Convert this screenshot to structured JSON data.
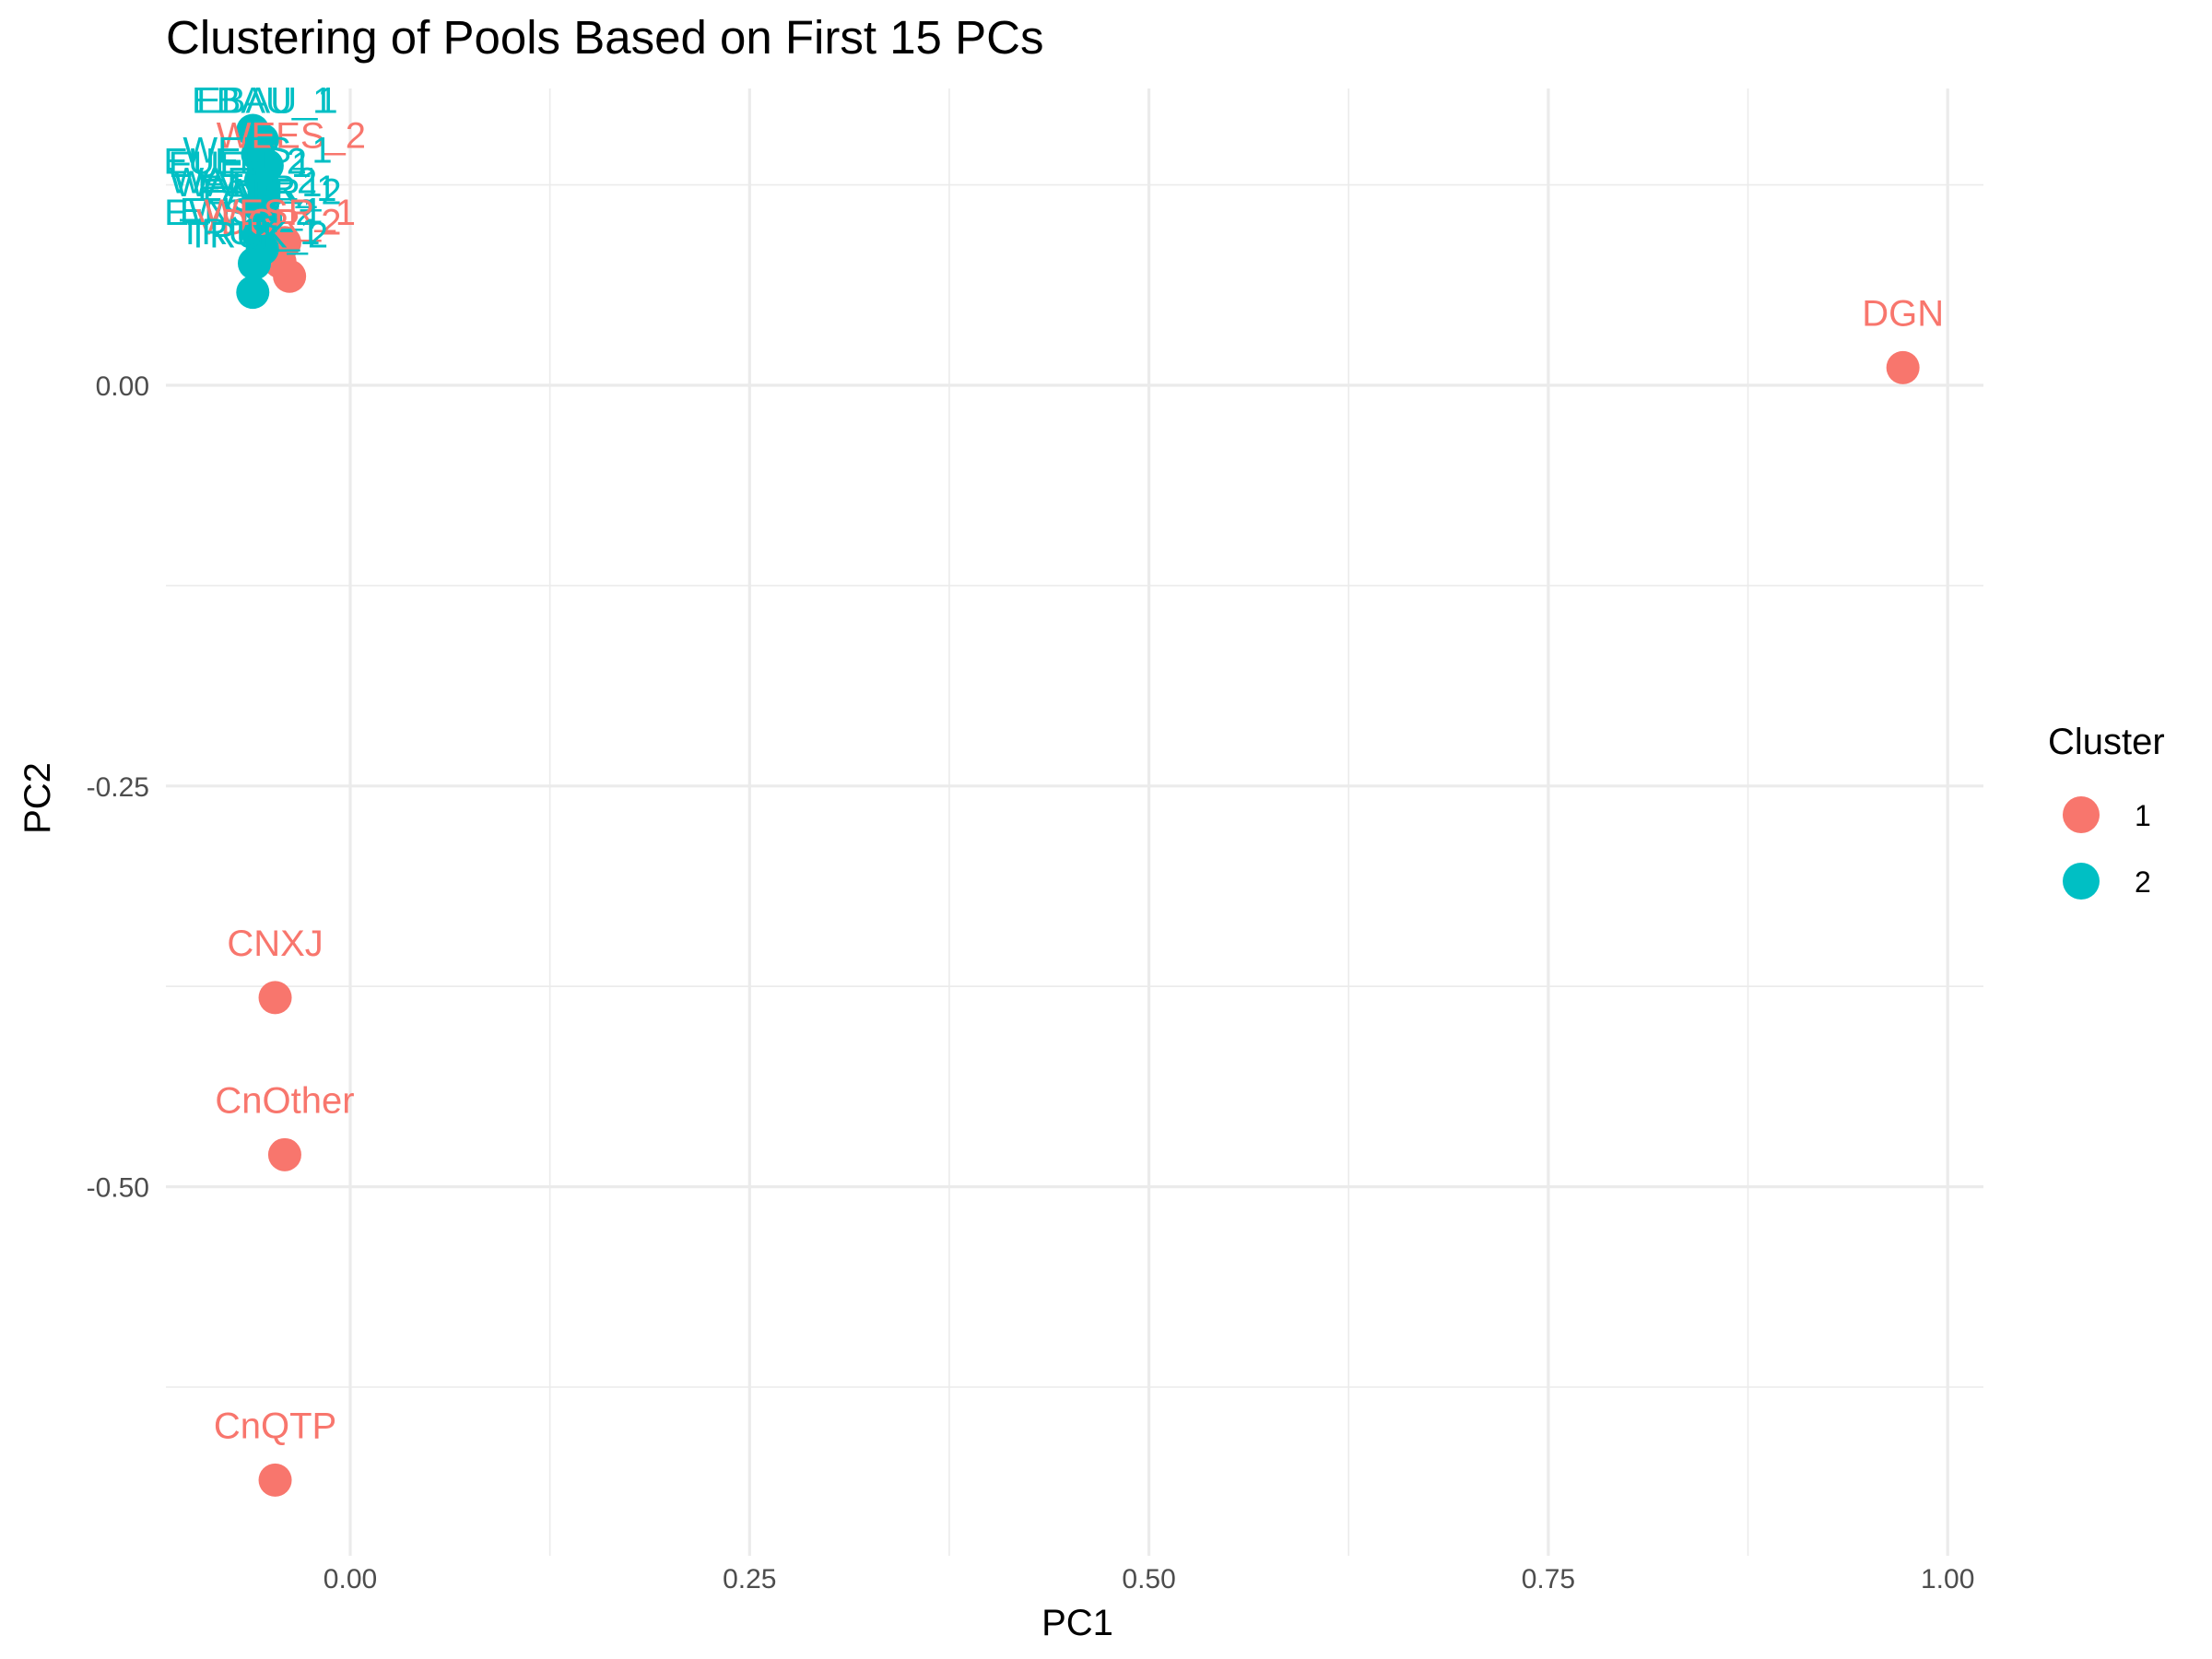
{
  "chart_data": {
    "type": "scatter",
    "title": "Clustering of Pools Based on First 15 PCs",
    "xlabel": "PC1",
    "ylabel": "PC2",
    "xlim": [
      -0.115,
      1.025
    ],
    "ylim": [
      -0.728,
      0.185
    ],
    "x_ticks": [
      0.0,
      0.25,
      0.5,
      0.75,
      1.0
    ],
    "x_tick_labels": [
      "0.00",
      "0.25",
      "0.50",
      "0.75",
      "1.00"
    ],
    "y_ticks": [
      0.0,
      -0.25,
      -0.5
    ],
    "y_tick_labels": [
      "0.00",
      "-0.25",
      "-0.50"
    ],
    "grid": true,
    "legend": {
      "title": "Cluster",
      "placement": "right",
      "entries": [
        {
          "label": "1",
          "color": "#F8766D"
        },
        {
          "label": "2",
          "color": "#00BFC4"
        }
      ]
    },
    "series": [
      {
        "name": "1",
        "color": "#F8766D",
        "points": [
          {
            "label": "DGN",
            "x": 0.972,
            "y": 0.011
          },
          {
            "label": "CNXJ",
            "x": -0.047,
            "y": -0.382
          },
          {
            "label": "CnOther",
            "x": -0.041,
            "y": -0.48
          },
          {
            "label": "CnQTP",
            "x": -0.047,
            "y": -0.683
          },
          {
            "label": "WEES_2",
            "x": -0.038,
            "y": 0.068
          },
          {
            "label": "",
            "x": -0.044,
            "y": 0.077
          },
          {
            "label": "",
            "x": -0.041,
            "y": 0.089
          }
        ]
      },
      {
        "name": "2",
        "color": "#00BFC4",
        "points": [
          {
            "label": "EBAU_1",
            "x": -0.061,
            "y": 0.058
          },
          {
            "label": "",
            "x": -0.06,
            "y": 0.076
          },
          {
            "label": "",
            "x": -0.055,
            "y": 0.085
          },
          {
            "label": "",
            "x": -0.058,
            "y": 0.095
          },
          {
            "label": "",
            "x": -0.053,
            "y": 0.104
          },
          {
            "label": "",
            "x": -0.057,
            "y": 0.112
          },
          {
            "label": "",
            "x": -0.054,
            "y": 0.121
          },
          {
            "label": "",
            "x": -0.056,
            "y": 0.128
          },
          {
            "label": "",
            "x": -0.052,
            "y": 0.137
          },
          {
            "label": "",
            "x": -0.058,
            "y": 0.144
          },
          {
            "label": "",
            "x": -0.055,
            "y": 0.153
          },
          {
            "label": "",
            "x": -0.061,
            "y": 0.159
          }
        ]
      }
    ],
    "overlapping_labels": [
      {
        "text": "EBAU_1",
        "color": "#00BFC4",
        "x": -0.055,
        "y": 0.17
      },
      {
        "text": "EBAU_1",
        "color": "#00BFC4",
        "x": -0.052,
        "y": 0.17
      },
      {
        "text": "WEES_2",
        "color": "#F8766D",
        "x": -0.037,
        "y": 0.148
      },
      {
        "text": "WEES_1",
        "color": "#00BFC4",
        "x": -0.058,
        "y": 0.139
      },
      {
        "text": "EUEN_2",
        "color": "#00BFC4",
        "x": -0.072,
        "y": 0.132
      },
      {
        "text": "EUEN_1",
        "color": "#00BFC4",
        "x": -0.069,
        "y": 0.13
      },
      {
        "text": "WAFR_2",
        "color": "#00BFC4",
        "x": -0.067,
        "y": 0.12
      },
      {
        "text": "WAFR_1",
        "color": "#00BFC4",
        "x": -0.064,
        "y": 0.118
      },
      {
        "text": "EAFR_1",
        "color": "#00BFC4",
        "x": -0.052,
        "y": 0.115
      },
      {
        "text": "EAFR_2",
        "color": "#00BFC4",
        "x": -0.049,
        "y": 0.113
      },
      {
        "text": "ENSR_1",
        "color": "#00BFC4",
        "x": -0.062,
        "y": 0.101
      },
      {
        "text": "EWSR_2",
        "color": "#00BFC4",
        "x": -0.069,
        "y": 0.1
      },
      {
        "text": "WESR_1",
        "color": "#F8766D",
        "x": -0.044,
        "y": 0.1
      },
      {
        "text": "VDCR_2",
        "color": "#F8766D",
        "x": -0.051,
        "y": 0.094
      },
      {
        "text": "TRUK_1",
        "color": "#00BFC4",
        "x": -0.063,
        "y": 0.088
      },
      {
        "text": "TRUK_2",
        "color": "#00BFC4",
        "x": -0.058,
        "y": 0.086
      },
      {
        "text": "DGN",
        "color": "#F8766D",
        "x": 0.972,
        "y": 0.037
      },
      {
        "text": "CNXJ",
        "color": "#F8766D",
        "x": -0.047,
        "y": -0.356
      },
      {
        "text": "CnOther",
        "color": "#F8766D",
        "x": -0.041,
        "y": -0.454
      },
      {
        "text": "CnQTP",
        "color": "#F8766D",
        "x": -0.047,
        "y": -0.657
      }
    ]
  }
}
